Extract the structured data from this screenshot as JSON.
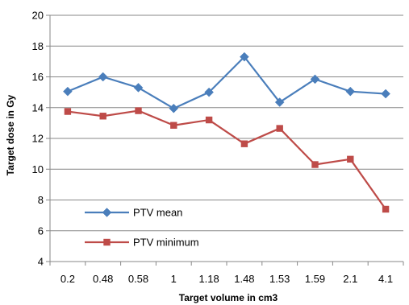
{
  "chart_data": {
    "type": "line",
    "title": "",
    "xlabel": "Target volume in cm3",
    "ylabel": "Target  dose  in Gy",
    "categories": [
      "0.2",
      "0.48",
      "0.58",
      "1",
      "1.18",
      "1.48",
      "1.53",
      "1.59",
      "2.1",
      "4.1"
    ],
    "ylim": [
      4,
      20
    ],
    "yticks": [
      "4",
      "6",
      "8",
      "10",
      "12",
      "14",
      "16",
      "18",
      "20"
    ],
    "grid": "horizontal",
    "legend_position": "lower-left",
    "series": [
      {
        "name": "PTV mean",
        "color": "#4a7ebb",
        "marker": "diamond",
        "values": [
          15.05,
          16.0,
          15.3,
          13.95,
          15.0,
          17.3,
          14.35,
          15.85,
          15.05,
          14.9
        ]
      },
      {
        "name": "PTV minimum",
        "color": "#be4b48",
        "marker": "square",
        "values": [
          13.75,
          13.45,
          13.8,
          12.85,
          13.2,
          11.65,
          12.65,
          10.3,
          10.65,
          7.4
        ]
      }
    ]
  }
}
